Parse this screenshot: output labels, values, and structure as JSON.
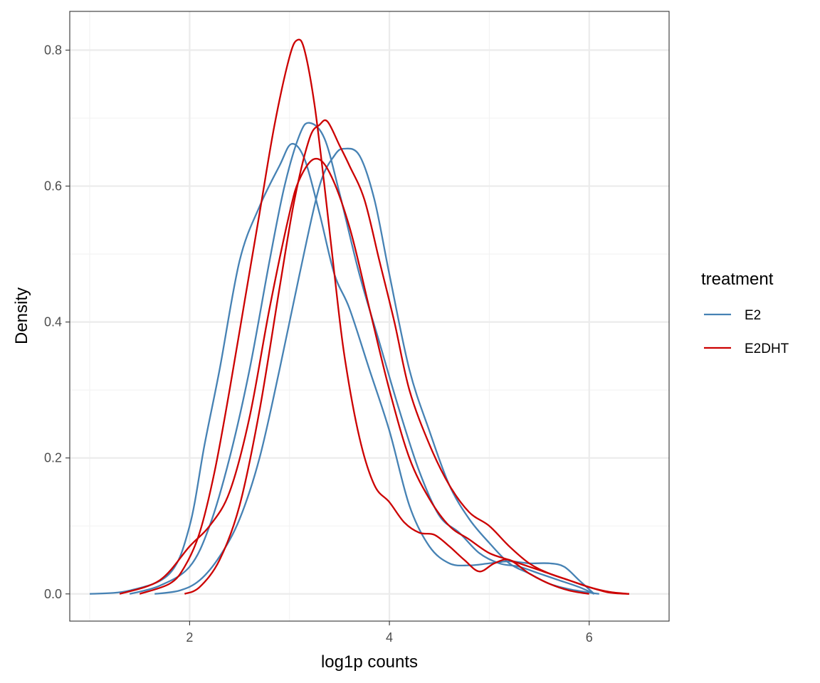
{
  "chart_data": {
    "type": "line",
    "title": "",
    "xlabel": "log1p counts",
    "ylabel": "Density",
    "xlim": [
      0.8,
      6.8
    ],
    "ylim": [
      -0.04,
      0.857
    ],
    "x_ticks": [
      2,
      4,
      6
    ],
    "y_ticks": [
      0.0,
      0.2,
      0.4,
      0.6,
      0.8
    ],
    "x_tick_labels": [
      "2",
      "4",
      "6"
    ],
    "y_tick_labels": [
      "0.0",
      "0.2",
      "0.4",
      "0.6",
      "0.8"
    ],
    "grid": true,
    "legend": {
      "title": "treatment",
      "position": "right",
      "entries": [
        {
          "label": "E2",
          "color": "#4682B4"
        },
        {
          "label": "E2DHT",
          "color": "#CC0000"
        }
      ]
    },
    "series": [
      {
        "group": "E2",
        "color": "#4682B4",
        "x": [
          1.0,
          1.4,
          1.8,
          2.0,
          2.15,
          2.3,
          2.5,
          2.7,
          2.9,
          3.02,
          3.15,
          3.3,
          3.45,
          3.6,
          3.8,
          4.0,
          4.2,
          4.4,
          4.6,
          4.8,
          5.0,
          5.2,
          5.4,
          5.6,
          5.75,
          5.9,
          6.05
        ],
        "y": [
          0.0,
          0.005,
          0.03,
          0.1,
          0.22,
          0.33,
          0.49,
          0.57,
          0.63,
          0.662,
          0.64,
          0.56,
          0.47,
          0.42,
          0.33,
          0.24,
          0.13,
          0.07,
          0.045,
          0.042,
          0.045,
          0.048,
          0.045,
          0.045,
          0.04,
          0.02,
          0.0
        ]
      },
      {
        "group": "E2",
        "color": "#4682B4",
        "x": [
          1.4,
          1.7,
          2.0,
          2.2,
          2.4,
          2.6,
          2.8,
          2.95,
          3.1,
          3.2,
          3.35,
          3.5,
          3.7,
          3.9,
          4.1,
          4.3,
          4.5,
          4.7,
          4.9,
          5.1,
          5.3,
          5.5,
          5.7,
          5.9,
          6.05
        ],
        "y": [
          0.0,
          0.012,
          0.04,
          0.1,
          0.2,
          0.33,
          0.49,
          0.6,
          0.675,
          0.693,
          0.67,
          0.59,
          0.47,
          0.37,
          0.27,
          0.18,
          0.115,
          0.09,
          0.06,
          0.045,
          0.04,
          0.03,
          0.02,
          0.01,
          0.0
        ]
      },
      {
        "group": "E2",
        "color": "#4682B4",
        "x": [
          1.65,
          1.9,
          2.1,
          2.3,
          2.5,
          2.7,
          2.9,
          3.1,
          3.3,
          3.45,
          3.55,
          3.7,
          3.85,
          4.0,
          4.2,
          4.4,
          4.6,
          4.8,
          5.0,
          5.2,
          5.4,
          5.6,
          5.8,
          6.0,
          6.1
        ],
        "y": [
          0.0,
          0.005,
          0.02,
          0.055,
          0.11,
          0.2,
          0.33,
          0.47,
          0.6,
          0.645,
          0.655,
          0.645,
          0.58,
          0.47,
          0.33,
          0.24,
          0.16,
          0.11,
          0.075,
          0.045,
          0.03,
          0.015,
          0.007,
          0.002,
          0.0
        ]
      },
      {
        "group": "E2DHT",
        "color": "#CC0000",
        "x": [
          1.5,
          1.8,
          1.95,
          2.1,
          2.25,
          2.4,
          2.55,
          2.7,
          2.85,
          3.0,
          3.08,
          3.15,
          3.25,
          3.35,
          3.45,
          3.55,
          3.7,
          3.85,
          4.0,
          4.15,
          4.3,
          4.45,
          4.6,
          4.75,
          4.9,
          5.05,
          5.2,
          5.4,
          5.6,
          5.8,
          6.0
        ],
        "y": [
          0.0,
          0.015,
          0.04,
          0.09,
          0.18,
          0.3,
          0.43,
          0.56,
          0.69,
          0.79,
          0.815,
          0.8,
          0.72,
          0.6,
          0.47,
          0.35,
          0.23,
          0.16,
          0.135,
          0.105,
          0.09,
          0.087,
          0.07,
          0.05,
          0.033,
          0.045,
          0.05,
          0.03,
          0.015,
          0.005,
          0.0
        ]
      },
      {
        "group": "E2DHT",
        "color": "#CC0000",
        "x": [
          1.3,
          1.7,
          2.0,
          2.2,
          2.4,
          2.6,
          2.8,
          3.0,
          3.1,
          3.25,
          3.4,
          3.6,
          3.8,
          4.0,
          4.2,
          4.4,
          4.6,
          4.8,
          5.0,
          5.2,
          5.4,
          5.6,
          5.8,
          6.0,
          6.2,
          6.4
        ],
        "y": [
          0.0,
          0.02,
          0.07,
          0.1,
          0.15,
          0.26,
          0.42,
          0.56,
          0.61,
          0.64,
          0.62,
          0.54,
          0.42,
          0.3,
          0.2,
          0.14,
          0.1,
          0.08,
          0.06,
          0.05,
          0.04,
          0.03,
          0.02,
          0.01,
          0.003,
          0.0
        ]
      },
      {
        "group": "E2DHT",
        "color": "#CC0000",
        "x": [
          1.95,
          2.1,
          2.3,
          2.5,
          2.7,
          2.9,
          3.05,
          3.2,
          3.3,
          3.38,
          3.5,
          3.6,
          3.75,
          3.9,
          4.05,
          4.2,
          4.4,
          4.6,
          4.8,
          5.0,
          5.2,
          5.4,
          5.6,
          5.8,
          6.0,
          6.2,
          6.4
        ],
        "y": [
          0.0,
          0.01,
          0.05,
          0.13,
          0.27,
          0.45,
          0.58,
          0.67,
          0.69,
          0.695,
          0.66,
          0.63,
          0.58,
          0.49,
          0.4,
          0.3,
          0.22,
          0.16,
          0.12,
          0.1,
          0.07,
          0.045,
          0.03,
          0.02,
          0.01,
          0.002,
          0.0
        ]
      }
    ]
  }
}
